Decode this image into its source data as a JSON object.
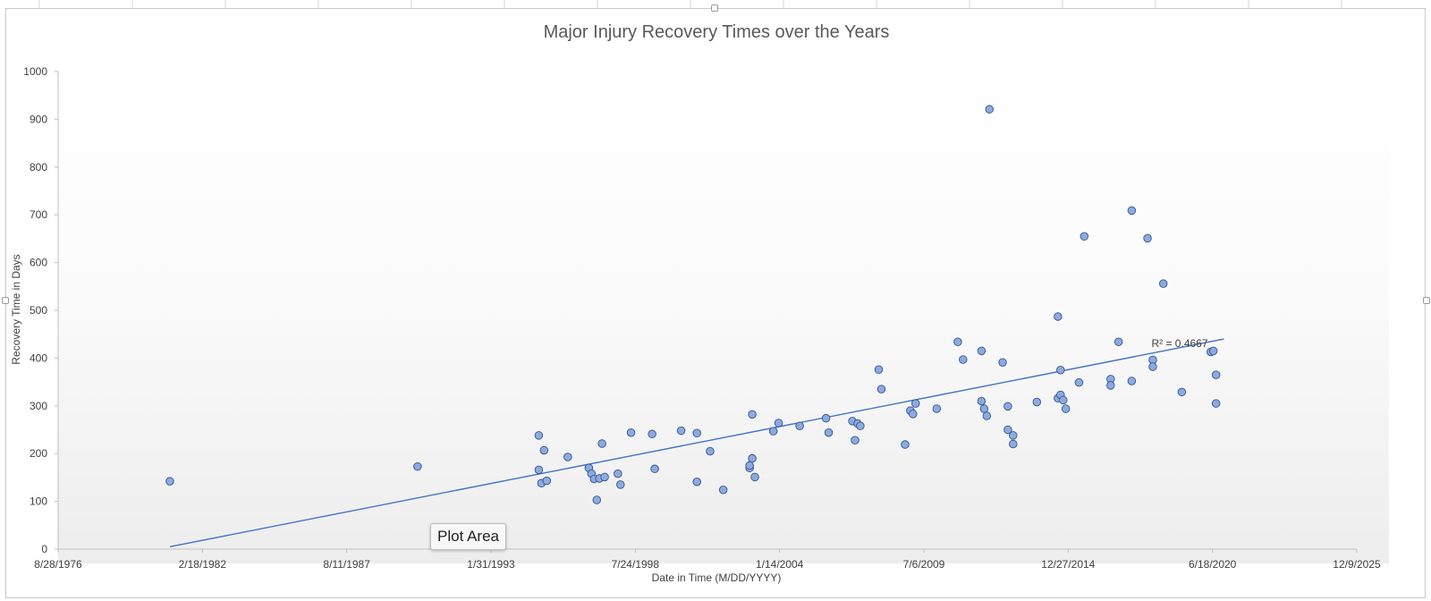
{
  "tooltip": "Plot Area",
  "chart_data": {
    "type": "scatter",
    "title": "Major Injury Recovery Times over the Years",
    "xlabel": "Date in Time (M/DD/YYYY)",
    "ylabel": "Recovery Time in Days",
    "xlim": [
      "8/28/1976",
      "12/9/2025"
    ],
    "ylim": [
      0,
      1000
    ],
    "x_ticks": [
      "8/28/1976",
      "2/18/1982",
      "8/11/1987",
      "1/31/1993",
      "7/24/1998",
      "1/14/2004",
      "7/6/2009",
      "12/27/2014",
      "6/18/2020",
      "12/9/2025"
    ],
    "y_ticks": [
      0,
      100,
      200,
      300,
      400,
      500,
      600,
      700,
      800,
      900,
      1000
    ],
    "point_color": "#8eaadb",
    "point_stroke": "#2f5597",
    "trendline": {
      "type": "linear",
      "r2_label": "R² = 0.4667",
      "start": {
        "x": 1980.9,
        "y": 5
      },
      "end": {
        "x": 2020.9,
        "y": 440
      },
      "color": "#4472c4"
    },
    "x_unit": "decimal year",
    "points": [
      {
        "x": 1980.9,
        "y": 142
      },
      {
        "x": 1990.3,
        "y": 173
      },
      {
        "x": 1994.9,
        "y": 238
      },
      {
        "x": 1994.9,
        "y": 166
      },
      {
        "x": 1995.0,
        "y": 138
      },
      {
        "x": 1995.1,
        "y": 207
      },
      {
        "x": 1995.2,
        "y": 143
      },
      {
        "x": 1996.0,
        "y": 193
      },
      {
        "x": 1996.8,
        "y": 170
      },
      {
        "x": 1996.9,
        "y": 158
      },
      {
        "x": 1997.0,
        "y": 147
      },
      {
        "x": 1997.1,
        "y": 103
      },
      {
        "x": 1997.2,
        "y": 148
      },
      {
        "x": 1997.3,
        "y": 221
      },
      {
        "x": 1997.4,
        "y": 151
      },
      {
        "x": 1997.9,
        "y": 158
      },
      {
        "x": 1998.0,
        "y": 135
      },
      {
        "x": 1998.4,
        "y": 244
      },
      {
        "x": 1999.2,
        "y": 241
      },
      {
        "x": 1999.3,
        "y": 168
      },
      {
        "x": 2000.3,
        "y": 248
      },
      {
        "x": 2000.9,
        "y": 243
      },
      {
        "x": 2000.9,
        "y": 141
      },
      {
        "x": 2001.4,
        "y": 205
      },
      {
        "x": 2001.9,
        "y": 124
      },
      {
        "x": 2002.9,
        "y": 170
      },
      {
        "x": 2002.9,
        "y": 175
      },
      {
        "x": 2003.0,
        "y": 190
      },
      {
        "x": 2003.0,
        "y": 282
      },
      {
        "x": 2003.1,
        "y": 151
      },
      {
        "x": 2003.8,
        "y": 247
      },
      {
        "x": 2004.0,
        "y": 264
      },
      {
        "x": 2004.8,
        "y": 258
      },
      {
        "x": 2005.8,
        "y": 274
      },
      {
        "x": 2005.9,
        "y": 244
      },
      {
        "x": 2006.8,
        "y": 268
      },
      {
        "x": 2006.9,
        "y": 228
      },
      {
        "x": 2007.0,
        "y": 263
      },
      {
        "x": 2007.1,
        "y": 258
      },
      {
        "x": 2007.8,
        "y": 376
      },
      {
        "x": 2007.9,
        "y": 335
      },
      {
        "x": 2008.8,
        "y": 219
      },
      {
        "x": 2009.0,
        "y": 290
      },
      {
        "x": 2009.1,
        "y": 283
      },
      {
        "x": 2009.2,
        "y": 305
      },
      {
        "x": 2010.0,
        "y": 294
      },
      {
        "x": 2010.8,
        "y": 434
      },
      {
        "x": 2011.0,
        "y": 397
      },
      {
        "x": 2011.7,
        "y": 415
      },
      {
        "x": 2011.7,
        "y": 310
      },
      {
        "x": 2011.8,
        "y": 294
      },
      {
        "x": 2011.9,
        "y": 279
      },
      {
        "x": 2012.0,
        "y": 921
      },
      {
        "x": 2012.5,
        "y": 391
      },
      {
        "x": 2012.7,
        "y": 299
      },
      {
        "x": 2012.7,
        "y": 250
      },
      {
        "x": 2012.9,
        "y": 238
      },
      {
        "x": 2012.9,
        "y": 220
      },
      {
        "x": 2013.8,
        "y": 308
      },
      {
        "x": 2014.6,
        "y": 487
      },
      {
        "x": 2014.6,
        "y": 316
      },
      {
        "x": 2014.7,
        "y": 375
      },
      {
        "x": 2014.7,
        "y": 323
      },
      {
        "x": 2014.8,
        "y": 312
      },
      {
        "x": 2014.9,
        "y": 294
      },
      {
        "x": 2015.4,
        "y": 349
      },
      {
        "x": 2015.6,
        "y": 655
      },
      {
        "x": 2016.6,
        "y": 356
      },
      {
        "x": 2016.6,
        "y": 343
      },
      {
        "x": 2016.9,
        "y": 434
      },
      {
        "x": 2017.4,
        "y": 709
      },
      {
        "x": 2017.4,
        "y": 352
      },
      {
        "x": 2018.0,
        "y": 651
      },
      {
        "x": 2018.2,
        "y": 396
      },
      {
        "x": 2018.2,
        "y": 382
      },
      {
        "x": 2018.6,
        "y": 556
      },
      {
        "x": 2019.3,
        "y": 329
      },
      {
        "x": 2020.4,
        "y": 413
      },
      {
        "x": 2020.5,
        "y": 415
      },
      {
        "x": 2020.6,
        "y": 365
      },
      {
        "x": 2020.6,
        "y": 305
      }
    ]
  }
}
